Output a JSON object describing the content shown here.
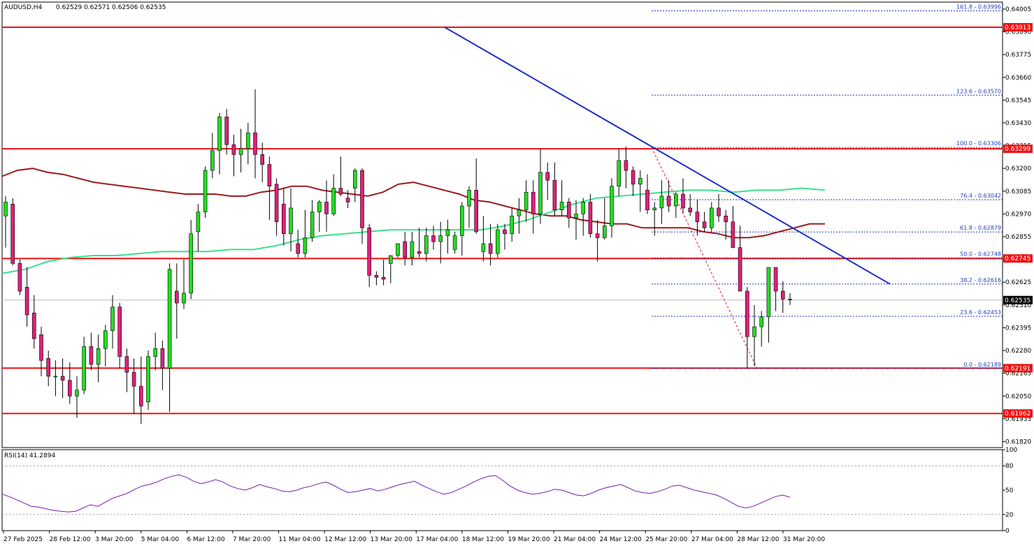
{
  "header": {
    "symbol": "AUDUSD,H4",
    "ohlc": "0.62529 0.62571 0.62506 0.62535"
  },
  "rsi_header": {
    "label": "RSI(14) 41.2894"
  },
  "colors": {
    "bull": "#22dd22",
    "bear": "#e0207a",
    "resistance": "#ee1111",
    "trendline": "#1c2fcc",
    "ma_slow": "#9b1c1c",
    "ma_fast": "#3be08a",
    "fib": "#2233bb",
    "rsi": "#7a1ab0"
  },
  "chart_data": {
    "type": "candlestick",
    "ylim": [
      0.6179,
      0.6404
    ],
    "y_ticks": [
      "0.64005",
      "0.63890",
      "0.63775",
      "0.63660",
      "0.63545",
      "0.63430",
      "0.63315",
      "0.63200",
      "0.63085",
      "0.62970",
      "0.62855",
      "0.62740",
      "0.62625",
      "0.62510",
      "0.62395",
      "0.62280",
      "0.62165",
      "0.62050",
      "0.61935",
      "0.61820"
    ],
    "x_ticks": [
      "27 Feb 2025",
      "28 Feb 12:00",
      "3 Mar 20:00",
      "5 Mar 04:00",
      "6 Mar 12:00",
      "7 Mar 20:00",
      "11 Mar 04:00",
      "12 Mar 12:00",
      "13 Mar 20:00",
      "17 Mar 04:00",
      "18 Mar 12:00",
      "19 Mar 20:00",
      "21 Mar 04:00",
      "24 Mar 12:00",
      "25 Mar 20:00",
      "27 Mar 04:00",
      "28 Mar 12:00",
      "31 Mar 20:00"
    ],
    "candles_ohlc": [
      [
        0.6296,
        0.6306,
        0.628,
        0.6303
      ],
      [
        0.6302,
        0.6305,
        0.6271,
        0.6272
      ],
      [
        0.6272,
        0.6274,
        0.6256,
        0.6258
      ],
      [
        0.626,
        0.627,
        0.624,
        0.6246
      ],
      [
        0.6247,
        0.6256,
        0.6229,
        0.6234
      ],
      [
        0.6236,
        0.624,
        0.6215,
        0.6223
      ],
      [
        0.6224,
        0.6228,
        0.621,
        0.6215
      ],
      [
        0.6215,
        0.6223,
        0.6205,
        0.6215
      ],
      [
        0.6215,
        0.6224,
        0.6204,
        0.6213
      ],
      [
        0.6213,
        0.6222,
        0.6201,
        0.6205
      ],
      [
        0.6205,
        0.6215,
        0.6194,
        0.6208
      ],
      [
        0.6208,
        0.6235,
        0.6206,
        0.623
      ],
      [
        0.623,
        0.6237,
        0.6218,
        0.6221
      ],
      [
        0.6221,
        0.6236,
        0.6212,
        0.6229
      ],
      [
        0.6229,
        0.6241,
        0.622,
        0.6238
      ],
      [
        0.6238,
        0.6256,
        0.6229,
        0.625
      ],
      [
        0.625,
        0.6252,
        0.6219,
        0.6225
      ],
      [
        0.6225,
        0.6229,
        0.6207,
        0.6217
      ],
      [
        0.6217,
        0.6224,
        0.6196,
        0.621
      ],
      [
        0.621,
        0.6225,
        0.6191,
        0.62
      ],
      [
        0.6202,
        0.6228,
        0.6198,
        0.6225
      ],
      [
        0.6225,
        0.6237,
        0.6218,
        0.6229
      ],
      [
        0.6229,
        0.6233,
        0.6208,
        0.6219
      ],
      [
        0.6219,
        0.6272,
        0.6197,
        0.6269
      ],
      [
        0.6258,
        0.6272,
        0.6234,
        0.6252
      ],
      [
        0.6252,
        0.6274,
        0.6249,
        0.6257
      ],
      [
        0.6257,
        0.6294,
        0.6254,
        0.6287
      ],
      [
        0.6288,
        0.6302,
        0.6278,
        0.6298
      ],
      [
        0.6298,
        0.6321,
        0.6295,
        0.6319
      ],
      [
        0.6319,
        0.6338,
        0.6315,
        0.6329
      ],
      [
        0.6329,
        0.6348,
        0.6317,
        0.6346
      ],
      [
        0.6346,
        0.635,
        0.6327,
        0.6332
      ],
      [
        0.6332,
        0.6337,
        0.6316,
        0.6327
      ],
      [
        0.6327,
        0.634,
        0.6318,
        0.633
      ],
      [
        0.633,
        0.6343,
        0.6322,
        0.6338
      ],
      [
        0.6338,
        0.636,
        0.6315,
        0.6327
      ],
      [
        0.6327,
        0.6333,
        0.6313,
        0.6322
      ],
      [
        0.6322,
        0.6326,
        0.6294,
        0.6311
      ],
      [
        0.6312,
        0.6315,
        0.6286,
        0.6293
      ],
      [
        0.6302,
        0.631,
        0.6281,
        0.6287
      ],
      [
        0.6287,
        0.631,
        0.6278,
        0.63
      ],
      [
        0.6282,
        0.6289,
        0.6275,
        0.6277
      ],
      [
        0.6277,
        0.6299,
        0.6275,
        0.6285
      ],
      [
        0.6285,
        0.6304,
        0.6283,
        0.6298
      ],
      [
        0.6298,
        0.6304,
        0.6288,
        0.6303
      ],
      [
        0.6303,
        0.6314,
        0.6288,
        0.6297
      ],
      [
        0.6297,
        0.6317,
        0.6296,
        0.631
      ],
      [
        0.631,
        0.6326,
        0.6306,
        0.6307
      ],
      [
        0.6305,
        0.6309,
        0.63,
        0.6303
      ],
      [
        0.631,
        0.632,
        0.6303,
        0.6319
      ],
      [
        0.6319,
        0.632,
        0.6282,
        0.629
      ],
      [
        0.629,
        0.6292,
        0.626,
        0.6266
      ],
      [
        0.6266,
        0.6268,
        0.6261,
        0.6265
      ],
      [
        0.6265,
        0.6274,
        0.6261,
        0.6264
      ],
      [
        0.6272,
        0.6276,
        0.6262,
        0.6276
      ],
      [
        0.6276,
        0.6282,
        0.6275,
        0.6282
      ],
      [
        0.6283,
        0.6288,
        0.6271,
        0.6275
      ],
      [
        0.6275,
        0.6288,
        0.6271,
        0.6283
      ],
      [
        0.6278,
        0.629,
        0.6275,
        0.6277
      ],
      [
        0.6277,
        0.629,
        0.6273,
        0.6286
      ],
      [
        0.6286,
        0.6291,
        0.6279,
        0.6283
      ],
      [
        0.6283,
        0.6293,
        0.6272,
        0.6286
      ],
      [
        0.6286,
        0.6294,
        0.6277,
        0.6289
      ],
      [
        0.6279,
        0.6288,
        0.6277,
        0.6286
      ],
      [
        0.6286,
        0.6303,
        0.6276,
        0.6301
      ],
      [
        0.6301,
        0.6311,
        0.629,
        0.6309
      ],
      [
        0.6309,
        0.6325,
        0.6287,
        0.6288
      ],
      [
        0.6278,
        0.6296,
        0.6273,
        0.6282
      ],
      [
        0.6282,
        0.6292,
        0.6271,
        0.6277
      ],
      [
        0.6277,
        0.6292,
        0.6275,
        0.6289
      ],
      [
        0.6289,
        0.6292,
        0.6279,
        0.6287
      ],
      [
        0.6287,
        0.63,
        0.6283,
        0.6296
      ],
      [
        0.6296,
        0.6305,
        0.6287,
        0.6299
      ],
      [
        0.6299,
        0.6314,
        0.6293,
        0.6308
      ],
      [
        0.6308,
        0.6314,
        0.6287,
        0.6297
      ],
      [
        0.6297,
        0.633,
        0.6292,
        0.6318
      ],
      [
        0.6318,
        0.6323,
        0.6304,
        0.6314
      ],
      [
        0.6314,
        0.6323,
        0.6296,
        0.6299
      ],
      [
        0.6299,
        0.6314,
        0.6296,
        0.6303
      ],
      [
        0.6303,
        0.6305,
        0.629,
        0.6295
      ],
      [
        0.6295,
        0.6304,
        0.6284,
        0.6297
      ],
      [
        0.6297,
        0.6305,
        0.6286,
        0.6303
      ],
      [
        0.6303,
        0.6307,
        0.6285,
        0.6287
      ],
      [
        0.6287,
        0.6294,
        0.6273,
        0.6285
      ],
      [
        0.6285,
        0.6305,
        0.6284,
        0.6291
      ],
      [
        0.6291,
        0.6315,
        0.6285,
        0.6311
      ],
      [
        0.6311,
        0.633,
        0.6306,
        0.6324
      ],
      [
        0.6324,
        0.6331,
        0.631,
        0.6319
      ],
      [
        0.6319,
        0.6321,
        0.6306,
        0.6312
      ],
      [
        0.6312,
        0.6319,
        0.6298,
        0.6315
      ],
      [
        0.6309,
        0.6317,
        0.6297,
        0.6299
      ],
      [
        0.6299,
        0.6303,
        0.6286,
        0.63
      ],
      [
        0.63,
        0.6314,
        0.6292,
        0.6306
      ],
      [
        0.6306,
        0.6314,
        0.6298,
        0.6301
      ],
      [
        0.6301,
        0.6308,
        0.6295,
        0.6307
      ],
      [
        0.6307,
        0.6315,
        0.6297,
        0.63
      ],
      [
        0.63,
        0.6307,
        0.6296,
        0.6298
      ],
      [
        0.6298,
        0.6304,
        0.6286,
        0.6293
      ],
      [
        0.6293,
        0.6298,
        0.6288,
        0.629
      ],
      [
        0.629,
        0.6303,
        0.6288,
        0.63
      ],
      [
        0.63,
        0.6307,
        0.6293,
        0.6296
      ],
      [
        0.6296,
        0.6299,
        0.6284,
        0.6293
      ],
      [
        0.6293,
        0.6301,
        0.628,
        0.628
      ],
      [
        0.628,
        0.6291,
        0.6272,
        0.6258
      ],
      [
        0.6258,
        0.626,
        0.6219,
        0.6235
      ],
      [
        0.6235,
        0.6251,
        0.622,
        0.624
      ],
      [
        0.624,
        0.6248,
        0.623,
        0.6245
      ],
      [
        0.6245,
        0.6265,
        0.6232,
        0.627
      ],
      [
        0.627,
        0.627,
        0.6248,
        0.6258
      ],
      [
        0.6258,
        0.6263,
        0.6247,
        0.6254
      ],
      [
        0.6254,
        0.6257,
        0.6251,
        0.6254
      ]
    ],
    "ma_slow_values": [
      0.6316,
      0.6319,
      0.632,
      0.6318,
      0.6317,
      0.6315,
      0.6313,
      0.6312,
      0.6311,
      0.631,
      0.6309,
      0.6308,
      0.6307,
      0.6307,
      0.6307,
      0.6306,
      0.6306,
      0.6308,
      0.6309,
      0.6311,
      0.6311,
      0.6309,
      0.6308,
      0.6307,
      0.6306,
      0.6308,
      0.6312,
      0.6313,
      0.6311,
      0.6309,
      0.6307,
      0.6304,
      0.6303,
      0.6301,
      0.6299,
      0.6297,
      0.6296,
      0.6296,
      0.6294,
      0.6293,
      0.6292,
      0.6292,
      0.629,
      0.629,
      0.629,
      0.629,
      0.6288,
      0.6287,
      0.6285,
      0.6285,
      0.6286,
      0.6288,
      0.629,
      0.6292,
      0.6292
    ],
    "ma_fast_values": [
      0.6267,
      0.6269,
      0.6273,
      0.6275,
      0.6276,
      0.6276,
      0.6277,
      0.6278,
      0.6278,
      0.6278,
      0.6279,
      0.6279,
      0.6281,
      0.6284,
      0.6286,
      0.6287,
      0.6288,
      0.6289,
      0.6289,
      0.6289,
      0.6289,
      0.6289,
      0.6291,
      0.6294,
      0.6298,
      0.6302,
      0.6305,
      0.6306,
      0.6307,
      0.6308,
      0.6309,
      0.6309,
      0.6308,
      0.6309,
      0.6309,
      0.631,
      0.6309
    ],
    "fib_levels": [
      {
        "label": "161.8 - 0.63996",
        "value": 0.63996
      },
      {
        "label": "123.6 - 0.63570",
        "value": 0.6357
      },
      {
        "label": "100.0 - 0.63306",
        "value": 0.63306
      },
      {
        "label": "76.4 - 0.63042",
        "value": 0.63042
      },
      {
        "label": "61.8 - 0.62879",
        "value": 0.62879
      },
      {
        "label": "50.0 - 0.62748",
        "value": 0.62748
      },
      {
        "label": "38.2 - 0.62616",
        "value": 0.62616
      },
      {
        "label": "23.6 - 0.62453",
        "value": 0.62453
      },
      {
        "label": "0.0 - 0.62189",
        "value": 0.62189
      }
    ],
    "horizontal_levels": [
      {
        "label": "0.63913",
        "value": 0.63913
      },
      {
        "label": "0.63299",
        "value": 0.63299
      },
      {
        "label": "0.62745",
        "value": 0.62745
      },
      {
        "label": "0.62191",
        "value": 0.62191
      },
      {
        "label": "0.61962",
        "value": 0.61962
      }
    ],
    "current_price": {
      "label": "0.62535",
      "value": 0.62535
    },
    "trendline": {
      "from": 0.63913,
      "to": 0.62616
    },
    "rsi": {
      "period": 14,
      "ylim": [
        0,
        100
      ],
      "y_ticks": [
        "100",
        "80",
        "50",
        "20",
        "0"
      ],
      "levels": [
        80,
        20
      ],
      "values": [
        45,
        42,
        38,
        34,
        30,
        29,
        27,
        25,
        24,
        23,
        24,
        28,
        32,
        30,
        35,
        40,
        43,
        46,
        51,
        55,
        57,
        60,
        64,
        67,
        69,
        66,
        61,
        58,
        60,
        63,
        60,
        55,
        52,
        50,
        53,
        57,
        54,
        52,
        49,
        48,
        50,
        53,
        55,
        58,
        60,
        56,
        51,
        47,
        48,
        50,
        52,
        49,
        51,
        54,
        57,
        59,
        61,
        56,
        52,
        48,
        45,
        47,
        51,
        55,
        60,
        64,
        67,
        68,
        62,
        55,
        50,
        47,
        45,
        46,
        48,
        51,
        50,
        47,
        44,
        43,
        46,
        50,
        53,
        55,
        57,
        53,
        49,
        47,
        46,
        48,
        51,
        55,
        56,
        53,
        50,
        48,
        46,
        44,
        40,
        35,
        30,
        28,
        30,
        34,
        38,
        42,
        44,
        41
      ]
    }
  }
}
